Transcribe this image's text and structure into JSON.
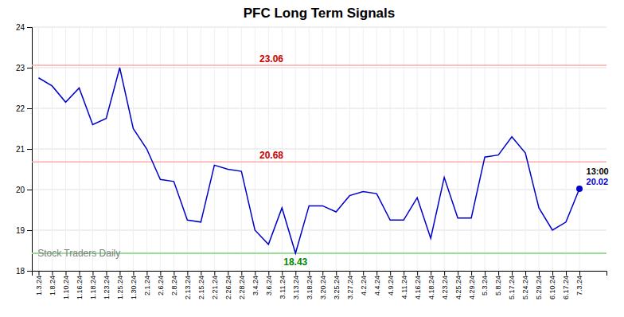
{
  "chart_data": {
    "type": "line",
    "title": "PFC Long Term Signals",
    "categories": [
      "1.3.24",
      "1.8.24",
      "1.10.24",
      "1.16.24",
      "1.18.24",
      "1.23.24",
      "1.25.24",
      "1.30.24",
      "2.1.24",
      "2.6.24",
      "2.8.24",
      "2.13.24",
      "2.15.24",
      "2.21.24",
      "2.26.24",
      "2.28.24",
      "3.4.24",
      "3.6.24",
      "3.11.24",
      "3.13.24",
      "3.18.24",
      "3.20.24",
      "3.25.24",
      "3.27.24",
      "4.2.24",
      "4.4.24",
      "4.9.24",
      "4.11.24",
      "4.16.24",
      "4.18.24",
      "4.23.24",
      "4.25.24",
      "4.29.24",
      "5.3.24",
      "5.8.24",
      "5.17.24",
      "5.24.24",
      "5.29.24",
      "6.10.24",
      "6.17.24",
      "7.3.24"
    ],
    "values": [
      22.75,
      22.55,
      22.15,
      22.5,
      21.6,
      21.75,
      23.0,
      21.5,
      21.0,
      20.25,
      20.2,
      19.25,
      19.2,
      20.6,
      20.5,
      20.45,
      19.0,
      18.65,
      19.55,
      18.43,
      19.6,
      19.6,
      19.45,
      19.85,
      19.95,
      19.9,
      19.25,
      19.25,
      19.8,
      18.8,
      20.3,
      19.3,
      19.3,
      20.8,
      20.85,
      21.3,
      20.9,
      19.55,
      19.0,
      19.2,
      20.02
    ],
    "color": "#0000cc",
    "marker": "circle",
    "ylim": [
      18.0,
      24.0
    ],
    "yticks": [
      18,
      19,
      20,
      21,
      22,
      23,
      24
    ],
    "grid": true,
    "hlines": [
      {
        "value": 23.06,
        "label": "23.06",
        "color": "#ffaaaa",
        "label_color": "#cc0000"
      },
      {
        "value": 20.68,
        "label": "20.68",
        "color": "#ffaaaa",
        "label_color": "#cc0000"
      },
      {
        "value": 18.43,
        "label": "18.43",
        "color": "#99dd99",
        "label_color": "#008800"
      }
    ],
    "last_point": {
      "label": "13:00",
      "label_color": "black",
      "value": 20.02
    },
    "watermark": "Stock Traders Daily"
  }
}
